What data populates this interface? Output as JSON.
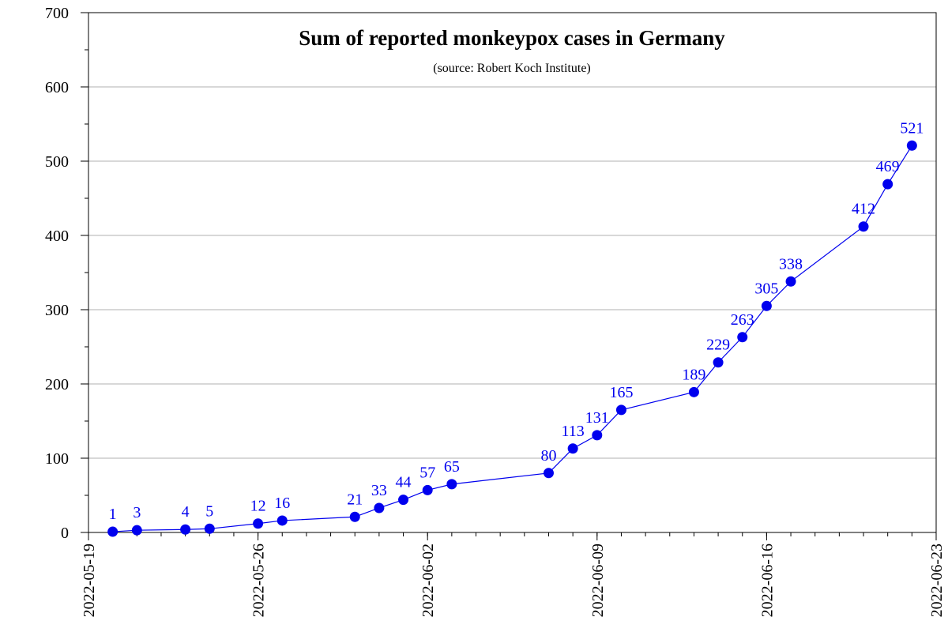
{
  "chart_data": {
    "type": "line",
    "title": "Sum of reported monkeypox cases in Germany",
    "subtitle": "(source: Robert Koch Institute)",
    "xlabel": "",
    "ylabel": "",
    "xlim": [
      "2022-05-19",
      "2022-06-23"
    ],
    "ylim": [
      0,
      700
    ],
    "yticks": [
      0,
      100,
      200,
      300,
      400,
      500,
      600,
      700
    ],
    "yticks_labels": [
      "0",
      "100",
      "200",
      "300",
      "400",
      "500",
      "600",
      "700"
    ],
    "xticks": [
      "2022-05-19",
      "2022-05-26",
      "2022-06-02",
      "2022-06-09",
      "2022-06-16",
      "2022-06-23"
    ],
    "grid": "horizontal",
    "series": [
      {
        "color": "#0000ee",
        "points": [
          {
            "x": "2022-05-20",
            "y": 1
          },
          {
            "x": "2022-05-21",
            "y": 3
          },
          {
            "x": "2022-05-23",
            "y": 4
          },
          {
            "x": "2022-05-24",
            "y": 5
          },
          {
            "x": "2022-05-26",
            "y": 12
          },
          {
            "x": "2022-05-27",
            "y": 16
          },
          {
            "x": "2022-05-30",
            "y": 21
          },
          {
            "x": "2022-05-31",
            "y": 33
          },
          {
            "x": "2022-06-01",
            "y": 44
          },
          {
            "x": "2022-06-02",
            "y": 57
          },
          {
            "x": "2022-06-03",
            "y": 65
          },
          {
            "x": "2022-06-07",
            "y": 80
          },
          {
            "x": "2022-06-08",
            "y": 113
          },
          {
            "x": "2022-06-09",
            "y": 131
          },
          {
            "x": "2022-06-10",
            "y": 165
          },
          {
            "x": "2022-06-13",
            "y": 189
          },
          {
            "x": "2022-06-14",
            "y": 229
          },
          {
            "x": "2022-06-15",
            "y": 263
          },
          {
            "x": "2022-06-16",
            "y": 305
          },
          {
            "x": "2022-06-17",
            "y": 338
          },
          {
            "x": "2022-06-20",
            "y": 412
          },
          {
            "x": "2022-06-21",
            "y": 469
          },
          {
            "x": "2022-06-22",
            "y": 521
          }
        ]
      }
    ]
  }
}
